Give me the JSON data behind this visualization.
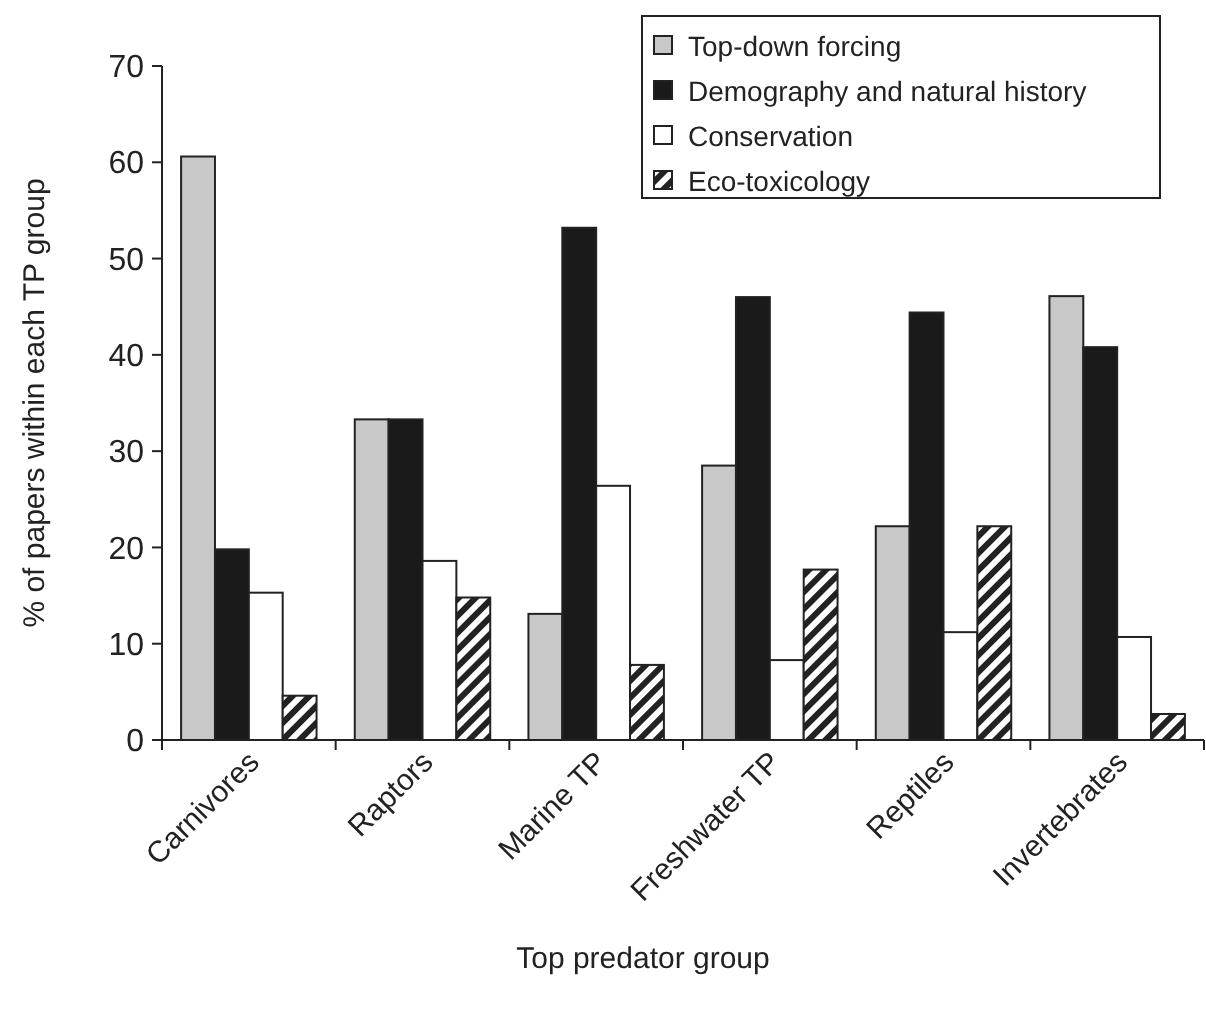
{
  "chart_data": {
    "type": "bar",
    "xlabel": "Top predator group",
    "ylabel": "% of papers within each TP group",
    "categories": [
      "Carnivores",
      "Raptors",
      "Marine TP",
      "Freshwater TP",
      "Reptiles",
      "Invertebrates"
    ],
    "series": [
      {
        "name": "Top-down forcing",
        "color": "#c8c8c8",
        "values": [
          60.6,
          33.3,
          13.1,
          28.5,
          22.2,
          46.1
        ]
      },
      {
        "name": "Demography and natural history",
        "color": "#1a1a1a",
        "values": [
          19.8,
          33.3,
          53.2,
          46.0,
          44.4,
          40.8
        ]
      },
      {
        "name": "Conservation",
        "color": "#ffffff",
        "values": [
          15.3,
          18.6,
          26.4,
          8.3,
          11.2,
          10.7
        ]
      },
      {
        "name": "Eco-toxicology",
        "color": "#222222",
        "values": [
          4.6,
          14.8,
          7.8,
          17.7,
          22.2,
          2.7
        ]
      }
    ],
    "ylim": [
      0,
      70
    ],
    "yticks": [
      0,
      10,
      20,
      30,
      40,
      50,
      60,
      70
    ],
    "grid": false,
    "legend": "top right"
  }
}
